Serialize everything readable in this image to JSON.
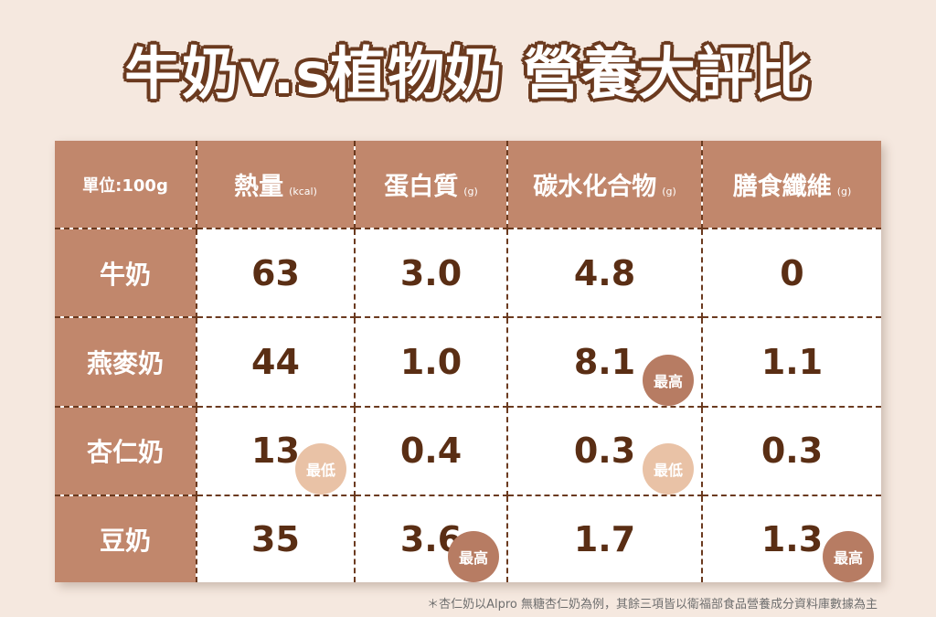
{
  "title": "牛奶v.s植物奶 營養大評比",
  "table": {
    "unit_header": "單位:100g",
    "columns": [
      {
        "name": "熱量",
        "unit": "(kcal)"
      },
      {
        "name": "蛋白質",
        "unit": "(g)"
      },
      {
        "name": "碳水化合物",
        "unit": "(g)"
      },
      {
        "name": "膳食纖維",
        "unit": "(g)"
      }
    ],
    "rows": [
      {
        "name": "牛奶",
        "values": [
          "63",
          "3.0",
          "4.8",
          "0"
        ],
        "badges": [
          "",
          "",
          "",
          ""
        ]
      },
      {
        "name": "燕麥奶",
        "values": [
          "44",
          "1.0",
          "8.1",
          "1.1"
        ],
        "badges": [
          "",
          "",
          "最高",
          ""
        ]
      },
      {
        "name": "杏仁奶",
        "values": [
          "13",
          "0.4",
          "0.3",
          "0.3"
        ],
        "badges": [
          "最低",
          "",
          "最低",
          ""
        ]
      },
      {
        "name": "豆奶",
        "values": [
          "35",
          "3.6",
          "1.7",
          "1.3"
        ],
        "badges": [
          "",
          "最高",
          "",
          "最高"
        ]
      }
    ]
  },
  "footnote": "＊杏仁奶以Alpro 無糖杏仁奶為例，其餘三項皆以衛福部食品營養成分資料庫數據為主",
  "colors": {
    "background": "#f5e8df",
    "header": "#c1876c",
    "text_dark": "#5a2e14",
    "badge_high": "#b77c63",
    "badge_low": "#e9c2a6"
  }
}
